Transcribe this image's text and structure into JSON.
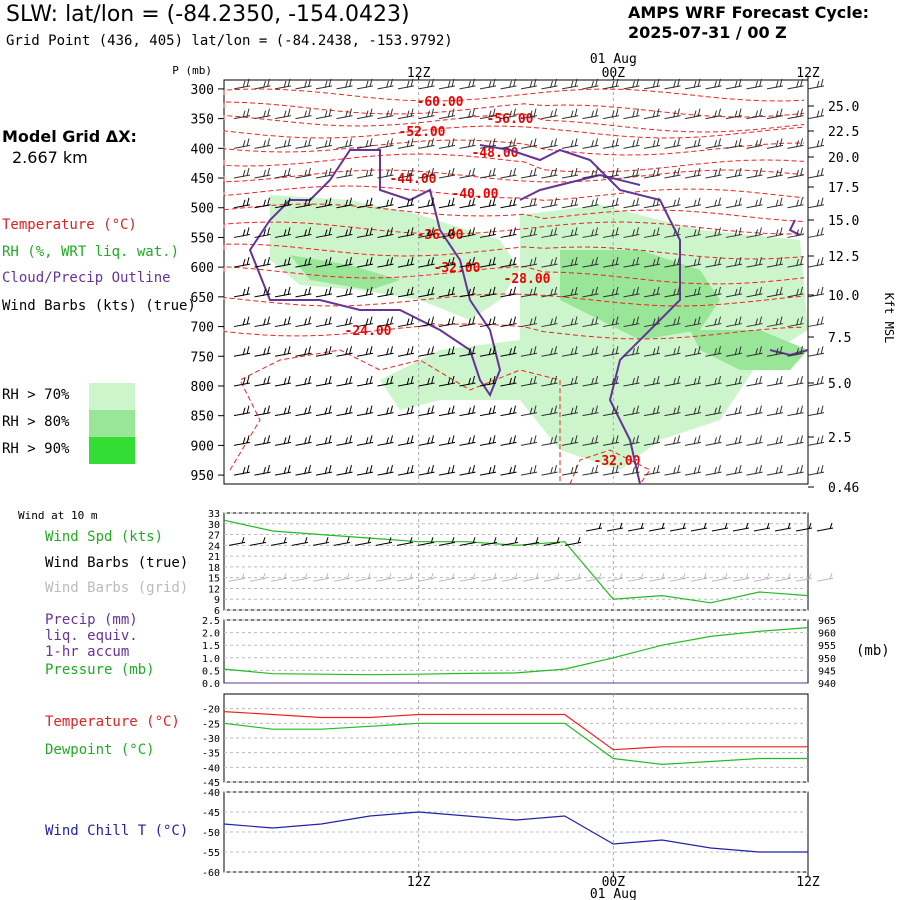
{
  "header": {
    "title": "SLW:  lat/lon = (-84.2350, -154.0423)",
    "subtitle": "Grid Point (436, 405) lat/lon = (-84.2438, -153.9792)",
    "cycle_line1": "AMPS WRF Forecast Cycle:",
    "cycle_line2": "2025-07-31 / 00  Z",
    "grid_line1": "Model Grid ΔX:",
    "grid_line2": "2.667 km"
  },
  "legend": {
    "temperature": "Temperature (°C)",
    "rh": "RH (%, WRT liq. wat.)",
    "cloud": "Cloud/Precip Outline",
    "wind": "Wind Barbs (kts) (true)",
    "rh70": "RH > 70%",
    "rh80": "RH > 80%",
    "rh90": "RH > 90%",
    "colors": {
      "rh70": "#ccf5cc",
      "rh80": "#99e699",
      "rh90": "#33dd33",
      "temp": "#ee0000",
      "cloud": "#663399"
    }
  },
  "time_axis": {
    "top_ticks": [
      "12Z",
      "00Z",
      "12Z"
    ],
    "date_label": "01 Aug",
    "bottom_ticks": [
      "12Z",
      "00Z",
      "12Z"
    ]
  },
  "panels": {
    "wind10_title": "Wind at 10 m",
    "wind_spd": "Wind Spd (kts)",
    "wind_true": "Wind Barbs (true)",
    "wind_grid": "Wind Barbs (grid)",
    "precip1": "Precip (mm)",
    "precip2": "liq. equiv.",
    "precip3": "1-hr accum",
    "pressure": "Pressure (mb)",
    "pressure_unit": "(mb)",
    "temperature": "Temperature (°C)",
    "dewpoint": "Dewpoint (°C)",
    "windchill": "Wind Chill T (°C)"
  },
  "chart_data": [
    {
      "type": "area",
      "name": "sounding",
      "ylabel_left": "P (mb)",
      "ylabel_right": "Kft MSL",
      "pressure_ticks": [
        300,
        350,
        400,
        450,
        500,
        550,
        600,
        650,
        700,
        750,
        800,
        850,
        900,
        950
      ],
      "kft_ticks": [
        "25.0",
        "22.5",
        "20.0",
        "17.5",
        "15.0",
        "12.5",
        "10.0",
        "7.5",
        "5.0",
        "2.5",
        "0.46"
      ],
      "temp_labels": [
        "-60.00",
        "-56.00",
        "-52.00",
        "-48.00",
        "-44.00",
        "-40.00",
        "-36.00",
        "-32.00",
        "-28.00",
        "-24.00",
        "-32.00"
      ]
    },
    {
      "type": "line",
      "name": "wind_speed_10m",
      "yticks": [
        6,
        9,
        12,
        15,
        18,
        21,
        24,
        27,
        30,
        33
      ],
      "ylim": [
        6,
        33
      ],
      "x_hours": [
        0,
        3,
        6,
        9,
        12,
        15,
        18,
        21,
        24,
        27,
        30,
        33,
        36
      ],
      "values": [
        31,
        28,
        27,
        26,
        25,
        25,
        24,
        25,
        9,
        10,
        8,
        11,
        10
      ]
    },
    {
      "type": "line",
      "name": "precip_pressure",
      "yticks_left": [
        "0.0",
        "0.5",
        "1.0",
        "1.5",
        "2.0",
        "2.5"
      ],
      "yticks_right": [
        940,
        945,
        950,
        955,
        960,
        965
      ],
      "precip_values": [
        0.0,
        0.0,
        0.0,
        0.0,
        0.0,
        0.0,
        0.0,
        0.0,
        0.0,
        0.0,
        0.0,
        0.0,
        0.0
      ],
      "pressure_values": [
        945.5,
        943.7,
        943.5,
        943.3,
        943.5,
        943.8,
        944.0,
        945.5,
        950.0,
        955.0,
        958.5,
        960.5,
        962.0
      ]
    },
    {
      "type": "line",
      "name": "temp_dewpoint",
      "yticks": [
        -45,
        -40,
        -35,
        -30,
        -25,
        -20
      ],
      "series": [
        {
          "name": "Temperature",
          "values": [
            -21,
            -22,
            -23,
            -23,
            -22,
            -22,
            -22,
            -22,
            -34,
            -33,
            -33,
            -33,
            -33
          ]
        },
        {
          "name": "Dewpoint",
          "values": [
            -25,
            -27,
            -27,
            -26,
            -25,
            -25,
            -25,
            -25,
            -37,
            -39,
            -38,
            -37,
            -37
          ]
        }
      ]
    },
    {
      "type": "line",
      "name": "wind_chill",
      "yticks": [
        -60,
        -55,
        -50,
        -45,
        -40
      ],
      "values": [
        -48,
        -49,
        -48,
        -46,
        -45,
        -46,
        -47,
        -46,
        -53,
        -52,
        -54,
        -55,
        -55
      ]
    }
  ]
}
